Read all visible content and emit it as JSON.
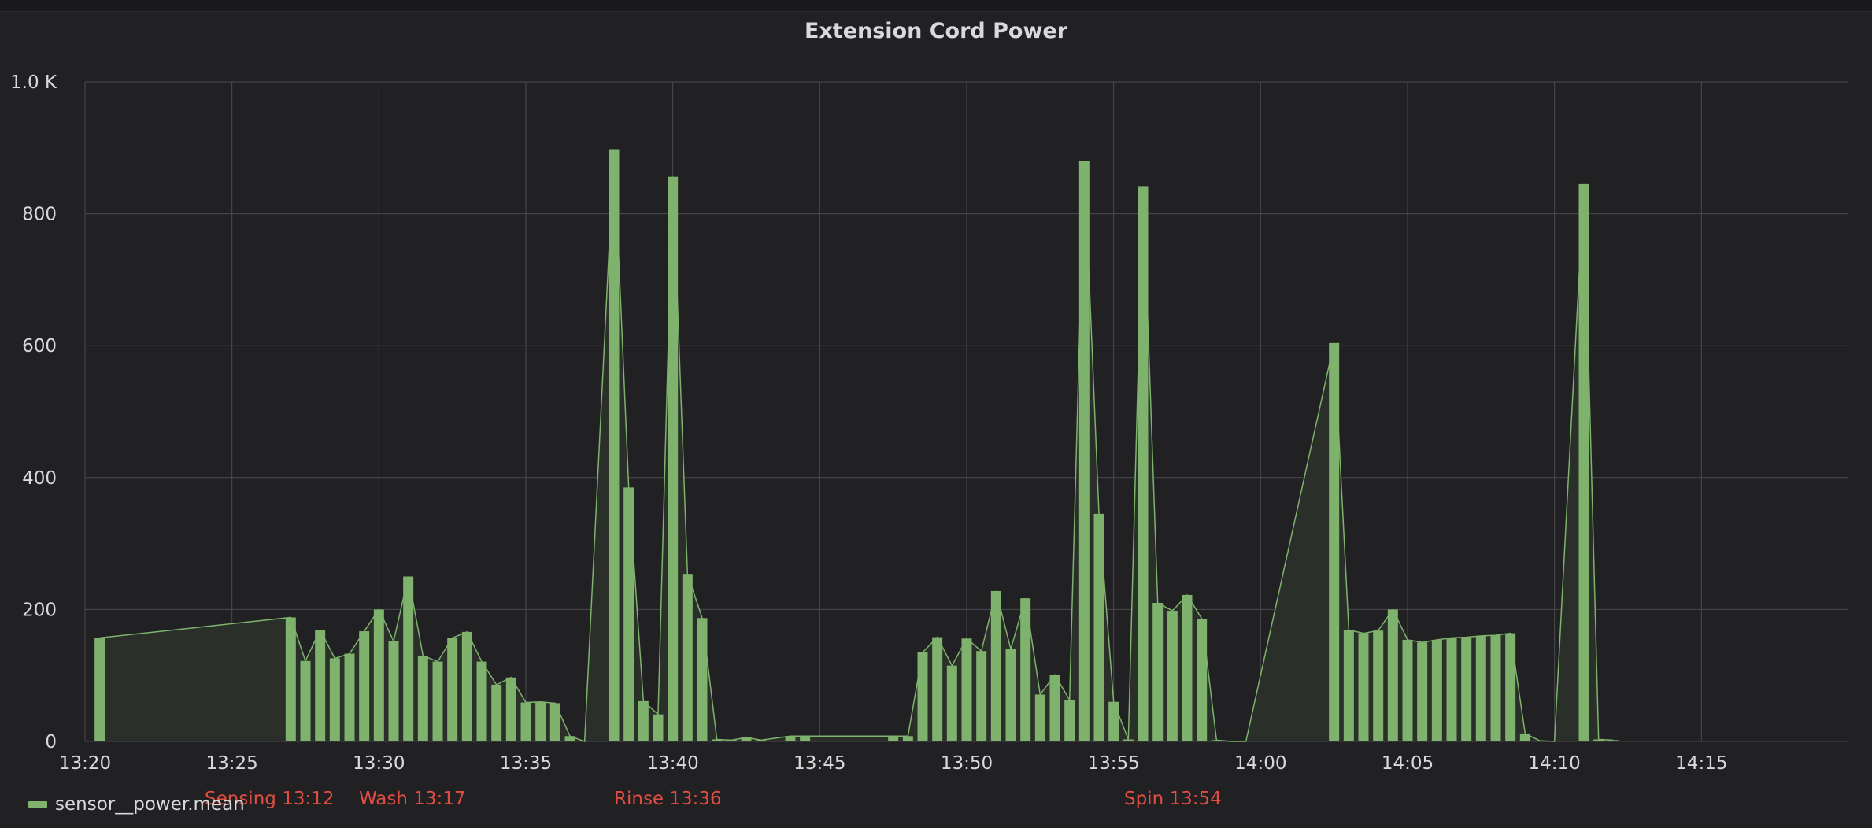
{
  "colors": {
    "background": "#212124",
    "grid": "#4a4b50",
    "series": "#7eb26d",
    "fill": "#2a2f29",
    "annotation_text": "#e24d42",
    "text": "#d8d9da"
  },
  "chart_data": {
    "type": "bar",
    "title": "Extension Cord Power",
    "xlabel": "",
    "ylabel": "",
    "x_axis": "time (minutes, HH:MM)",
    "xlim": [
      "13:20",
      "14:20"
    ],
    "x_ticks": [
      "13:20",
      "13:25",
      "13:30",
      "13:35",
      "13:40",
      "13:45",
      "13:50",
      "13:55",
      "14:00",
      "14:05",
      "14:10",
      "14:15"
    ],
    "ylim": [
      0,
      1000
    ],
    "y_ticks": [
      0,
      200,
      400,
      600,
      800,
      1000
    ],
    "y_tick_labels": [
      "0",
      "200",
      "400",
      "600",
      "800",
      "1.0 K"
    ],
    "grid": true,
    "legend_position": "bottom-left",
    "series": [
      {
        "name": "sensor__power.mean",
        "x": [
          "13:20.5",
          "13:27.0",
          "13:27.5",
          "13:28.0",
          "13:28.5",
          "13:29.0",
          "13:29.5",
          "13:30.0",
          "13:30.5",
          "13:31.0",
          "13:31.5",
          "13:32.0",
          "13:32.5",
          "13:33.0",
          "13:33.5",
          "13:34.0",
          "13:34.5",
          "13:35.0",
          "13:35.5",
          "13:36.0",
          "13:36.5",
          "13:37.0",
          "13:38.0",
          "13:38.5",
          "13:39.0",
          "13:39.5",
          "13:40.0",
          "13:40.5",
          "13:41.0",
          "13:41.5",
          "13:42.0",
          "13:42.5",
          "13:43.0",
          "13:44.0",
          "13:44.5",
          "13:47.5",
          "13:48.0",
          "13:48.5",
          "13:49.0",
          "13:49.5",
          "13:50.0",
          "13:50.5",
          "13:51.0",
          "13:51.5",
          "13:52.0",
          "13:52.5",
          "13:53.0",
          "13:53.5",
          "13:54.0",
          "13:54.5",
          "13:55.0",
          "13:55.5",
          "13:56.0",
          "13:56.5",
          "13:57.0",
          "13:57.5",
          "13:58.0",
          "13:58.5",
          "13:59.0",
          "13:59.5",
          "14:02.5",
          "14:03.0",
          "14:03.5",
          "14:04.0",
          "14:04.5",
          "14:05.0",
          "14:05.5",
          "14:06.0",
          "14:06.5",
          "14:07.0",
          "14:07.5",
          "14:08.0",
          "14:08.5",
          "14:09.0",
          "14:09.5",
          "14:10.0",
          "14:11.0",
          "14:11.5",
          "14:12.0"
        ],
        "values": [
          157,
          188,
          122,
          169,
          126,
          133,
          167,
          200,
          152,
          250,
          130,
          121,
          157,
          166,
          121,
          86,
          97,
          59,
          60,
          58,
          8,
          0,
          898,
          385,
          61,
          41,
          856,
          254,
          187,
          3,
          2,
          6,
          2,
          8,
          8,
          8,
          8,
          135,
          158,
          115,
          156,
          137,
          228,
          140,
          217,
          71,
          101,
          63,
          880,
          345,
          60,
          3,
          842,
          210,
          198,
          222,
          186,
          2,
          0,
          0,
          604,
          169,
          164,
          168,
          200,
          154,
          150,
          154,
          157,
          158,
          160,
          161,
          164,
          12,
          1,
          0,
          845,
          3,
          2
        ],
        "color": "#7eb26d"
      }
    ],
    "annotations": [
      {
        "label": "Sensing 13:12"
      },
      {
        "label": "Wash 13:17"
      },
      {
        "label": "Rinse 13:36"
      },
      {
        "label": "Spin 13:54"
      }
    ]
  }
}
